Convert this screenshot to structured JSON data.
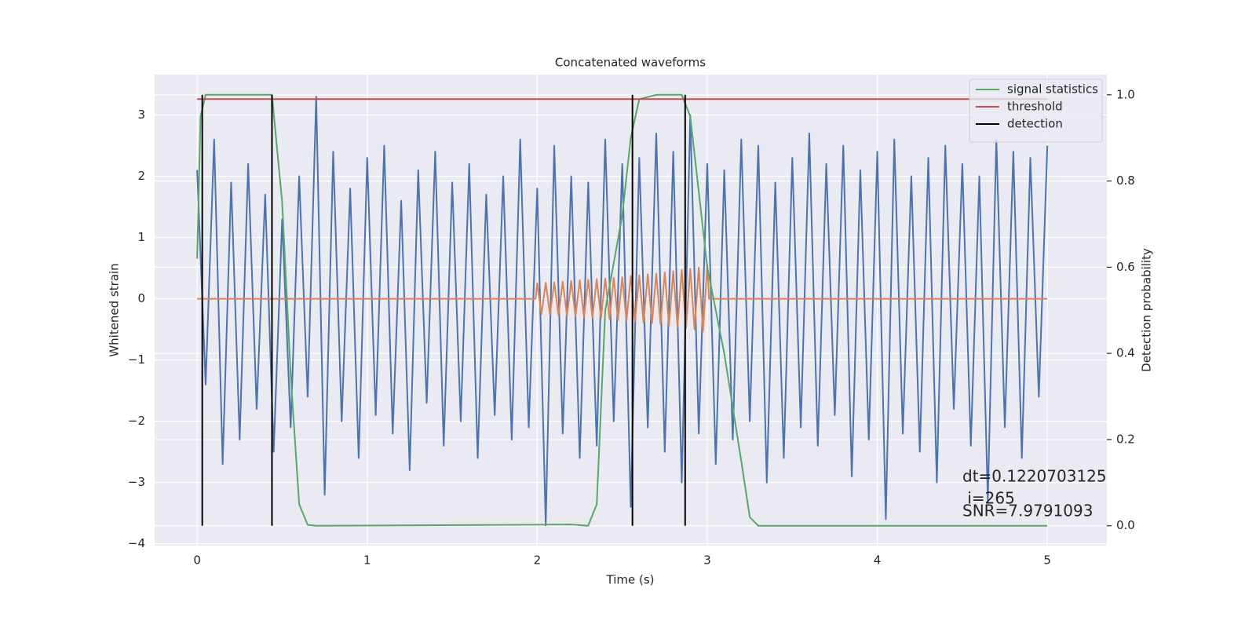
{
  "chart_data": {
    "type": "line",
    "title": "Concatenated waveforms",
    "xlabel": "Time (s)",
    "ylabel": "Whitened strain",
    "y2label": "Detection probability",
    "xlim": [
      -0.25,
      5.35
    ],
    "ylim": [
      -4.03,
      3.66
    ],
    "y2lim": [
      -0.046,
      1.047
    ],
    "xticks": [
      0,
      1,
      2,
      3,
      4,
      5
    ],
    "yticks": [
      {
        "value": -4,
        "label": "−4"
      },
      {
        "value": -3,
        "label": "−3"
      },
      {
        "value": -2,
        "label": "−2"
      },
      {
        "value": -1,
        "label": "−1"
      },
      0,
      1,
      2,
      3
    ],
    "y2ticks": [
      {
        "value": 0,
        "label": "0.0"
      },
      0.2,
      0.4,
      0.6,
      0.8,
      {
        "value": 1,
        "label": "1.0"
      }
    ],
    "grid": true,
    "legend": "upper right",
    "annotations": [
      "dt=0.1220703125",
      " i=265",
      "SNR=7.9791093"
    ],
    "series": [
      {
        "color": "#4c72b0",
        "axis": "y",
        "x": [
          0,
          0.05,
          0.1,
          0.15,
          0.2,
          0.25,
          0.3,
          0.35,
          0.4,
          0.45,
          0.5,
          0.55,
          0.6,
          0.65,
          0.7,
          0.75,
          0.8,
          0.85,
          0.9,
          0.95,
          1,
          1.05,
          1.1,
          1.15,
          1.2,
          1.25,
          1.3,
          1.35,
          1.4,
          1.45,
          1.5,
          1.55,
          1.6,
          1.65,
          1.7,
          1.75,
          1.8,
          1.85,
          1.9,
          1.95,
          2,
          2.05,
          2.1,
          2.15,
          2.2,
          2.25,
          2.3,
          2.35,
          2.4,
          2.45,
          2.5,
          2.55,
          2.6,
          2.65,
          2.7,
          2.75,
          2.8,
          2.85,
          2.9,
          2.95,
          3,
          3.05,
          3.1,
          3.15,
          3.2,
          3.25,
          3.3,
          3.35,
          3.4,
          3.45,
          3.5,
          3.55,
          3.6,
          3.65,
          3.7,
          3.75,
          3.8,
          3.85,
          3.9,
          3.95,
          4,
          4.05,
          4.1,
          4.15,
          4.2,
          4.25,
          4.3,
          4.35,
          4.4,
          4.45,
          4.5,
          4.55,
          4.6,
          4.65,
          4.7,
          4.75,
          4.8,
          4.85,
          4.9,
          4.95,
          5
        ],
        "values": [
          2.1,
          -1.4,
          2.6,
          -2.7,
          1.9,
          -2.3,
          2.2,
          -1.8,
          1.7,
          -2.5,
          1.3,
          -2.1,
          2.0,
          -1.6,
          3.3,
          -3.2,
          2.4,
          -2.0,
          1.8,
          -2.6,
          2.3,
          -1.9,
          2.5,
          -2.2,
          1.6,
          -2.8,
          2.1,
          -1.7,
          2.4,
          -2.4,
          1.9,
          -2.0,
          2.2,
          -2.6,
          1.7,
          -1.9,
          2.0,
          -2.3,
          2.6,
          -2.1,
          1.8,
          -3.7,
          2.5,
          -2.2,
          2.0,
          -2.6,
          1.9,
          -2.4,
          2.6,
          -2.0,
          2.2,
          -3.4,
          2.3,
          -2.1,
          2.7,
          -2.5,
          2.4,
          -3.0,
          3.0,
          -2.2,
          2.2,
          -2.7,
          2.1,
          -2.3,
          2.6,
          -2.0,
          2.5,
          -3.0,
          1.9,
          -2.6,
          2.3,
          -2.1,
          2.7,
          -2.4,
          2.2,
          -1.9,
          2.5,
          -2.9,
          2.1,
          -2.3,
          2.4,
          -3.6,
          2.6,
          -2.2,
          2.0,
          -2.5,
          2.3,
          -3.0,
          2.5,
          -1.8,
          2.2,
          -2.4,
          2.0,
          -3.3,
          2.6,
          -2.1,
          2.4,
          -2.6,
          2.3,
          -1.6,
          2.5
        ]
      },
      {
        "color": "#dd8452",
        "axis": "y",
        "x": [
          0,
          1.99,
          2,
          2.025,
          2.05,
          2.075,
          2.1,
          2.125,
          2.15,
          2.175,
          2.2,
          2.225,
          2.25,
          2.275,
          2.3,
          2.325,
          2.35,
          2.375,
          2.4,
          2.425,
          2.45,
          2.475,
          2.5,
          2.525,
          2.55,
          2.575,
          2.6,
          2.625,
          2.65,
          2.675,
          2.7,
          2.725,
          2.75,
          2.775,
          2.8,
          2.825,
          2.85,
          2.875,
          2.9,
          2.925,
          2.95,
          2.975,
          3,
          3.01,
          5
        ],
        "values": [
          0,
          0,
          0.25,
          -0.25,
          0.26,
          -0.26,
          0.27,
          -0.27,
          0.28,
          -0.28,
          0.29,
          -0.29,
          0.3,
          -0.3,
          0.31,
          -0.31,
          0.32,
          -0.32,
          0.33,
          -0.33,
          0.34,
          -0.35,
          0.35,
          -0.36,
          0.37,
          -0.37,
          0.38,
          -0.39,
          0.4,
          -0.4,
          0.41,
          -0.42,
          0.43,
          -0.44,
          0.45,
          -0.46,
          0.47,
          -0.48,
          0.49,
          -0.5,
          0.51,
          -0.53,
          0.55,
          0,
          0
        ]
      },
      {
        "name": "signal statistics",
        "color": "#55a868",
        "axis": "y2",
        "x": [
          0,
          0.02,
          0.05,
          0.2,
          0.44,
          0.5,
          0.55,
          0.6,
          0.65,
          0.7,
          2.2,
          2.3,
          2.35,
          2.4,
          2.5,
          2.55,
          2.6,
          2.7,
          2.85,
          2.9,
          3,
          3.1,
          3.2,
          3.25,
          3.3,
          5
        ],
        "values": [
          0.62,
          0.95,
          1,
          1,
          1,
          0.75,
          0.35,
          0.05,
          0.002,
          0,
          0.003,
          0,
          0.05,
          0.5,
          0.72,
          0.9,
          0.99,
          1,
          1,
          0.95,
          0.6,
          0.4,
          0.15,
          0.02,
          0,
          0
        ]
      },
      {
        "name": "threshold",
        "color": "#c44e52",
        "axis": "y2",
        "x": [
          0,
          5
        ],
        "values": [
          0.99,
          0.99
        ]
      },
      {
        "name": "detection",
        "color": "#000000",
        "axis": "y2",
        "type": "vlines",
        "x": [
          0.03,
          0.44,
          2.56,
          2.87
        ],
        "ymin": 0,
        "ymax": 1
      }
    ]
  }
}
